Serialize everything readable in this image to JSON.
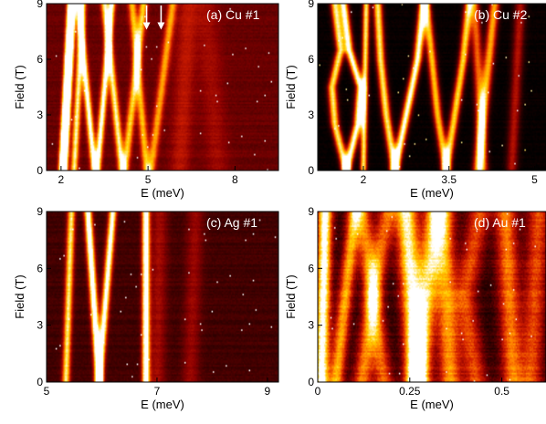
{
  "chart_data": [
    {
      "type": "heatmap",
      "panel_label": "(a) Cu #1",
      "xlabel": "E (meV)",
      "ylabel": "Field (T)",
      "xlim": [
        1.5,
        9.5
      ],
      "ylim": [
        0,
        9
      ],
      "xticks": [
        2,
        5,
        8
      ],
      "yticks": [
        0,
        3,
        6,
        9
      ],
      "colormap": [
        "#000000",
        "#3a0000",
        "#8b0000",
        "#d42000",
        "#ff7a00",
        "#ffd200",
        "#ffffff"
      ],
      "background_level": 0.26,
      "noise": 0.05,
      "arrows": [
        {
          "x": 4.95,
          "y_top": 8.9,
          "y_tip": 7.6
        },
        {
          "x": 5.45,
          "y_top": 8.9,
          "y_tip": 7.6
        }
      ],
      "lines": [
        {
          "points": [
            [
              2.0,
              0
            ],
            [
              2.3,
              9
            ]
          ],
          "width": 0.1,
          "intensity": 1.0
        },
        {
          "points": [
            [
              2.15,
              0
            ],
            [
              2.45,
              9
            ]
          ],
          "width": 0.09,
          "intensity": 0.85
        },
        {
          "points": [
            [
              2.45,
              0
            ],
            [
              2.75,
              9
            ]
          ],
          "width": 0.12,
          "intensity": 0.7
        },
        {
          "points": [
            [
              3.15,
              0
            ],
            [
              2.6,
              9
            ]
          ],
          "width": 0.12,
          "intensity": 0.8
        },
        {
          "points": [
            [
              3.25,
              0
            ],
            [
              3.75,
              9
            ]
          ],
          "width": 0.12,
          "intensity": 0.8
        },
        {
          "points": [
            [
              4.1,
              0
            ],
            [
              3.5,
              9
            ]
          ],
          "width": 0.13,
          "intensity": 0.7
        },
        {
          "points": [
            [
              4.2,
              0
            ],
            [
              4.85,
              9
            ]
          ],
          "width": 0.14,
          "intensity": 0.6
        },
        {
          "points": [
            [
              4.95,
              0
            ],
            [
              4.45,
              9
            ]
          ],
          "width": 0.14,
          "intensity": 0.55
        },
        {
          "points": [
            [
              5.1,
              0
            ],
            [
              5.85,
              9
            ]
          ],
          "width": 0.15,
          "intensity": 0.5
        },
        {
          "points": [
            [
              6.1,
              0
            ],
            [
              6.4,
              9
            ]
          ],
          "width": 0.35,
          "intensity": 0.18
        },
        {
          "points": [
            [
              7.4,
              0
            ],
            [
              7.0,
              9
            ]
          ],
          "width": 0.4,
          "intensity": 0.12
        }
      ]
    },
    {
      "type": "heatmap",
      "panel_label": "(b) Cu #2",
      "xlabel": "E (meV)",
      "ylabel": "Field (T)",
      "xlim": [
        1.2,
        5.2
      ],
      "ylim": [
        0,
        9
      ],
      "xticks": [
        2,
        3.5,
        5
      ],
      "yticks": [
        0,
        3,
        6,
        9
      ],
      "colormap": [
        "#000000",
        "#3a0000",
        "#8b0000",
        "#d42000",
        "#ff7a00",
        "#ffd200",
        "#ffffff"
      ],
      "background_level": 0.02,
      "noise": 0.04,
      "lines": [
        {
          "points": [
            [
              1.7,
              0
            ],
            [
              1.9,
              2.5
            ],
            [
              1.95,
              4.5
            ],
            [
              1.75,
              6.5
            ],
            [
              1.65,
              9
            ]
          ],
          "width": 0.08,
          "intensity": 1.0
        },
        {
          "points": [
            [
              1.7,
              0
            ],
            [
              1.5,
              2.5
            ],
            [
              1.45,
              4.5
            ],
            [
              1.6,
              6.5
            ],
            [
              1.5,
              9
            ]
          ],
          "width": 0.08,
          "intensity": 0.9
        },
        {
          "points": [
            [
              2.0,
              0
            ],
            [
              2.05,
              9
            ]
          ],
          "width": 0.06,
          "intensity": 0.9
        },
        {
          "points": [
            [
              2.55,
              0
            ],
            [
              2.75,
              3
            ],
            [
              2.95,
              6
            ],
            [
              3.05,
              9
            ]
          ],
          "width": 0.08,
          "intensity": 1.0
        },
        {
          "points": [
            [
              2.55,
              0
            ],
            [
              2.4,
              3
            ],
            [
              2.3,
              6
            ],
            [
              2.25,
              9
            ]
          ],
          "width": 0.08,
          "intensity": 0.9
        },
        {
          "points": [
            [
              3.45,
              0
            ],
            [
              3.6,
              3
            ],
            [
              3.75,
              6
            ],
            [
              3.85,
              9
            ]
          ],
          "width": 0.08,
          "intensity": 0.85
        },
        {
          "points": [
            [
              3.45,
              0
            ],
            [
              3.3,
              3
            ],
            [
              3.2,
              6
            ],
            [
              3.1,
              9
            ]
          ],
          "width": 0.08,
          "intensity": 0.8
        },
        {
          "points": [
            [
              4.0,
              0
            ],
            [
              4.3,
              9
            ]
          ],
          "width": 0.09,
          "intensity": 0.75
        },
        {
          "points": [
            [
              4.1,
              0
            ],
            [
              3.95,
              9
            ]
          ],
          "width": 0.09,
          "intensity": 0.6
        },
        {
          "points": [
            [
              4.6,
              0
            ],
            [
              4.75,
              9
            ]
          ],
          "width": 0.1,
          "intensity": 0.4
        }
      ]
    },
    {
      "type": "heatmap",
      "panel_label": "(c) Ag #1",
      "xlabel": "E (meV)",
      "ylabel": "Field (T)",
      "xlim": [
        5,
        9.2
      ],
      "ylim": [
        0,
        9
      ],
      "xticks": [
        5,
        7,
        9
      ],
      "yticks": [
        0,
        3,
        6,
        9
      ],
      "colormap": [
        "#000000",
        "#3a0000",
        "#8b0000",
        "#d42000",
        "#ff7a00",
        "#ffd200",
        "#ffffff"
      ],
      "background_level": 0.18,
      "noise": 0.05,
      "lines": [
        {
          "points": [
            [
              5.35,
              0
            ],
            [
              5.45,
              9
            ]
          ],
          "width": 0.07,
          "intensity": 0.75
        },
        {
          "points": [
            [
              5.95,
              0
            ],
            [
              5.75,
              9
            ]
          ],
          "width": 0.07,
          "intensity": 1.0
        },
        {
          "points": [
            [
              5.95,
              0
            ],
            [
              6.2,
              9
            ]
          ],
          "width": 0.07,
          "intensity": 0.9
        },
        {
          "points": [
            [
              6.8,
              0
            ],
            [
              6.8,
              9
            ]
          ],
          "width": 0.07,
          "intensity": 1.0
        },
        {
          "points": [
            [
              7.0,
              0
            ],
            [
              7.05,
              9
            ]
          ],
          "width": 0.15,
          "intensity": 0.2
        },
        {
          "points": [
            [
              7.6,
              0
            ],
            [
              7.7,
              9
            ]
          ],
          "width": 0.15,
          "intensity": 0.18
        }
      ]
    },
    {
      "type": "heatmap",
      "panel_label": "(d) Au #1",
      "xlabel": "E (meV)",
      "ylabel": "Field (T)",
      "xlim": [
        0,
        0.62
      ],
      "ylim": [
        0,
        9
      ],
      "xticks": [
        0,
        0.25,
        0.5
      ],
      "yticks": [
        0,
        3,
        6,
        9
      ],
      "colormap": [
        "#000000",
        "#3a0000",
        "#8b0000",
        "#d42000",
        "#ff7a00",
        "#ffd200",
        "#ffffff"
      ],
      "background_level": 0.12,
      "noise": 0.1,
      "lines": [
        {
          "points": [
            [
              0.01,
              0
            ],
            [
              0.02,
              9
            ]
          ],
          "width": 0.02,
          "intensity": 0.95
        },
        {
          "points": [
            [
              0.05,
              0
            ],
            [
              0.1,
              9
            ]
          ],
          "width": 0.02,
          "intensity": 0.65
        },
        {
          "points": [
            [
              0.12,
              0
            ],
            [
              0.15,
              4.5
            ],
            [
              0.12,
              9
            ]
          ],
          "width": 0.025,
          "intensity": 0.55
        },
        {
          "points": [
            [
              0.18,
              0
            ],
            [
              0.15,
              4.5
            ],
            [
              0.19,
              9
            ]
          ],
          "width": 0.025,
          "intensity": 0.5
        },
        {
          "points": [
            [
              0.27,
              0
            ],
            [
              0.24,
              9
            ]
          ],
          "width": 0.03,
          "intensity": 0.85
        },
        {
          "points": [
            [
              0.27,
              0
            ],
            [
              0.32,
              9
            ]
          ],
          "width": 0.03,
          "intensity": 0.7
        },
        {
          "points": [
            [
              0.36,
              0
            ],
            [
              0.34,
              9
            ]
          ],
          "width": 0.03,
          "intensity": 0.6
        },
        {
          "points": [
            [
              0.43,
              0
            ],
            [
              0.4,
              4.5
            ],
            [
              0.44,
              9
            ]
          ],
          "width": 0.03,
          "intensity": 0.45
        },
        {
          "points": [
            [
              0.53,
              0
            ],
            [
              0.51,
              9
            ]
          ],
          "width": 0.03,
          "intensity": 0.55
        },
        {
          "points": [
            [
              0.58,
              0
            ],
            [
              0.6,
              9
            ]
          ],
          "width": 0.03,
          "intensity": 0.45
        }
      ]
    }
  ]
}
